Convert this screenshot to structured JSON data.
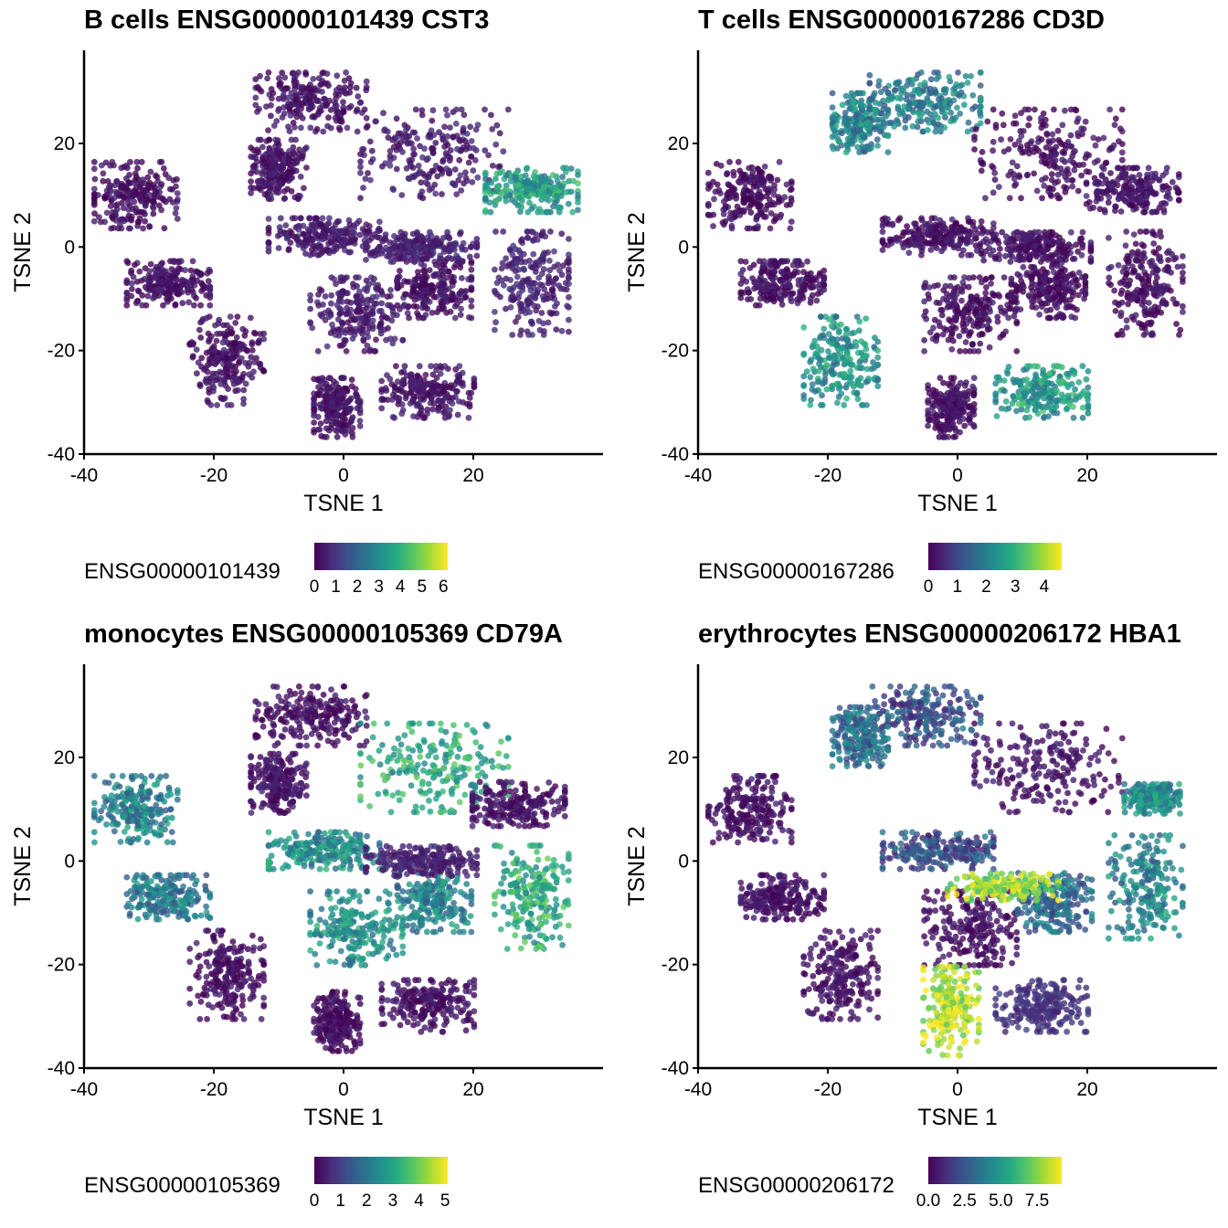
{
  "palette": [
    "#440154",
    "#472c7a",
    "#3b518b",
    "#2c718e",
    "#21908d",
    "#27ad81",
    "#5cc863",
    "#aadc32",
    "#fde725"
  ],
  "chart_data": [
    {
      "type": "scatter",
      "title": "B cells ENSG00000101439 CST3",
      "xlabel": "TSNE 1",
      "ylabel": "TSNE 2",
      "xlim": [
        -40,
        40
      ],
      "ylim": [
        -40,
        38
      ],
      "xticks": [
        -40,
        -20,
        0,
        20
      ],
      "yticks": [
        -40,
        -20,
        0,
        20
      ],
      "color_legend": {
        "title": "ENSG00000101439",
        "min": 0,
        "max": 6.2,
        "ticks": [
          "0",
          "1",
          "2",
          "3",
          "4",
          "5",
          "6"
        ],
        "tick_values": [
          0,
          1,
          2,
          3,
          4,
          5,
          6
        ]
      },
      "clusters": [
        {
          "name": "c1",
          "x": -32,
          "y": 10,
          "sx": 4.5,
          "sy": 4.5,
          "level": 0.05
        },
        {
          "name": "c2",
          "x": -27,
          "y": -7,
          "sx": 4.5,
          "sy": 3,
          "level": 0.05
        },
        {
          "name": "c3",
          "x": -18,
          "y": -22,
          "sx": 4,
          "sy": 6,
          "level": 0.05
        },
        {
          "name": "c4",
          "x": -5,
          "y": 28,
          "sx": 6,
          "sy": 4,
          "level": 0.05
        },
        {
          "name": "c5",
          "x": -10,
          "y": 15,
          "sx": 3,
          "sy": 4,
          "level": 0.05
        },
        {
          "name": "c6",
          "x": 14,
          "y": 18,
          "sx": 8,
          "sy": 6,
          "level": 0.08
        },
        {
          "name": "c7",
          "x": -3,
          "y": 2,
          "sx": 6,
          "sy": 2.5,
          "level": 0.07
        },
        {
          "name": "c8",
          "x": 2,
          "y": -13,
          "sx": 5,
          "sy": 5,
          "level": 0.08
        },
        {
          "name": "c9",
          "x": -1,
          "y": -31,
          "sx": 2.5,
          "sy": 4,
          "level": 0.05
        },
        {
          "name": "c10",
          "x": 13,
          "y": -28,
          "sx": 5,
          "sy": 3.5,
          "level": 0.06
        },
        {
          "name": "c11",
          "x": 14,
          "y": -8,
          "sx": 4,
          "sy": 4,
          "level": 0.05
        },
        {
          "name": "c12",
          "x": 29,
          "y": -7,
          "sx": 4,
          "sy": 7,
          "level": 0.1
        },
        {
          "name": "c13",
          "x": 29,
          "y": 11,
          "sx": 5,
          "sy": 3,
          "level": 0.55
        },
        {
          "name": "c14",
          "x": 12,
          "y": 0,
          "sx": 6,
          "sy": 2,
          "level": 0.1
        }
      ]
    },
    {
      "type": "scatter",
      "title": "T cells ENSG00000167286 CD3D",
      "xlabel": "TSNE 1",
      "ylabel": "TSNE 2",
      "xlim": [
        -40,
        40
      ],
      "ylim": [
        -40,
        38
      ],
      "xticks": [
        -40,
        -20,
        0,
        20
      ],
      "yticks": [
        -40,
        -20,
        0,
        20
      ],
      "color_legend": {
        "title": "ENSG00000167286",
        "min": 0,
        "max": 4.6,
        "ticks": [
          "0",
          "1",
          "2",
          "3",
          "4"
        ],
        "tick_values": [
          0,
          1,
          2,
          3,
          4
        ]
      },
      "clusters": [
        {
          "name": "c1",
          "x": -32,
          "y": 10,
          "sx": 4.5,
          "sy": 4.5,
          "level": 0.04
        },
        {
          "name": "c2",
          "x": -27,
          "y": -7,
          "sx": 4.5,
          "sy": 3,
          "level": 0.04
        },
        {
          "name": "c3",
          "x": -18,
          "y": -22,
          "sx": 4,
          "sy": 6,
          "level": 0.5
        },
        {
          "name": "c4",
          "x": -5,
          "y": 28,
          "sx": 6,
          "sy": 4,
          "level": 0.42
        },
        {
          "name": "c5",
          "x": -15,
          "y": 24,
          "sx": 3,
          "sy": 4,
          "level": 0.45
        },
        {
          "name": "c6",
          "x": 14,
          "y": 18,
          "sx": 8,
          "sy": 6,
          "level": 0.04
        },
        {
          "name": "c7",
          "x": -3,
          "y": 2,
          "sx": 6,
          "sy": 2.5,
          "level": 0.05
        },
        {
          "name": "c8",
          "x": 2,
          "y": -13,
          "sx": 5,
          "sy": 5,
          "level": 0.04
        },
        {
          "name": "c9",
          "x": -1,
          "y": -31,
          "sx": 2.5,
          "sy": 4,
          "level": 0.04
        },
        {
          "name": "c10",
          "x": 13,
          "y": -28,
          "sx": 5,
          "sy": 3.5,
          "level": 0.55
        },
        {
          "name": "c11",
          "x": 14,
          "y": -8,
          "sx": 4,
          "sy": 4,
          "level": 0.04
        },
        {
          "name": "c12",
          "x": 29,
          "y": -7,
          "sx": 4,
          "sy": 7,
          "level": 0.04
        },
        {
          "name": "c13",
          "x": 27,
          "y": 11,
          "sx": 5,
          "sy": 3,
          "level": 0.06
        },
        {
          "name": "c14",
          "x": 12,
          "y": 0,
          "sx": 6,
          "sy": 2,
          "level": 0.05
        }
      ]
    },
    {
      "type": "scatter",
      "title": "monocytes ENSG00000105369 CD79A",
      "xlabel": "TSNE 1",
      "ylabel": "TSNE 2",
      "xlim": [
        -40,
        40
      ],
      "ylim": [
        -40,
        38
      ],
      "xticks": [
        -40,
        -20,
        0,
        20
      ],
      "yticks": [
        -40,
        -20,
        0,
        20
      ],
      "color_legend": {
        "title": "ENSG00000105369",
        "min": 0,
        "max": 5.1,
        "ticks": [
          "0",
          "1",
          "2",
          "3",
          "4",
          "5"
        ],
        "tick_values": [
          0,
          1,
          2,
          3,
          4,
          5
        ]
      },
      "clusters": [
        {
          "name": "c1",
          "x": -32,
          "y": 10,
          "sx": 4.5,
          "sy": 4.5,
          "level": 0.45
        },
        {
          "name": "c2",
          "x": -27,
          "y": -7,
          "sx": 4.5,
          "sy": 3,
          "level": 0.4
        },
        {
          "name": "c3",
          "x": -18,
          "y": -22,
          "sx": 4,
          "sy": 6,
          "level": 0.04
        },
        {
          "name": "c4",
          "x": -5,
          "y": 28,
          "sx": 6,
          "sy": 4,
          "level": 0.04
        },
        {
          "name": "c5",
          "x": -10,
          "y": 15,
          "sx": 3,
          "sy": 4,
          "level": 0.06
        },
        {
          "name": "c6",
          "x": 14,
          "y": 18,
          "sx": 8,
          "sy": 6,
          "level": 0.6
        },
        {
          "name": "c7",
          "x": -3,
          "y": 2,
          "sx": 6,
          "sy": 2.5,
          "level": 0.5
        },
        {
          "name": "c8",
          "x": 2,
          "y": -13,
          "sx": 5,
          "sy": 5,
          "level": 0.5
        },
        {
          "name": "c9",
          "x": -1,
          "y": -31,
          "sx": 2.5,
          "sy": 4,
          "level": 0.04
        },
        {
          "name": "c10",
          "x": 13,
          "y": -28,
          "sx": 5,
          "sy": 3.5,
          "level": 0.05
        },
        {
          "name": "c11",
          "x": 14,
          "y": -8,
          "sx": 4,
          "sy": 4,
          "level": 0.45
        },
        {
          "name": "c12",
          "x": 29,
          "y": -7,
          "sx": 4,
          "sy": 7,
          "level": 0.62
        },
        {
          "name": "c13",
          "x": 27,
          "y": 11,
          "sx": 5,
          "sy": 3,
          "level": 0.05
        },
        {
          "name": "c14",
          "x": 12,
          "y": 0,
          "sx": 6,
          "sy": 2,
          "level": 0.1
        }
      ]
    },
    {
      "type": "scatter",
      "title": "erythrocytes ENSG00000206172 HBA1",
      "xlabel": "TSNE 1",
      "ylabel": "TSNE 2",
      "xlim": [
        -40,
        40
      ],
      "ylim": [
        -40,
        38
      ],
      "xticks": [
        -40,
        -20,
        0,
        20
      ],
      "yticks": [
        -40,
        -20,
        0,
        20
      ],
      "color_legend": {
        "title": "ENSG00000206172",
        "min": 0,
        "max": 9.2,
        "ticks": [
          "0.0",
          "2.5",
          "5.0",
          "7.5"
        ],
        "tick_values": [
          0,
          2.5,
          5,
          7.5
        ]
      },
      "clusters": [
        {
          "name": "c1",
          "x": -32,
          "y": 10,
          "sx": 4.5,
          "sy": 4.5,
          "level": 0.05
        },
        {
          "name": "c2",
          "x": -27,
          "y": -7,
          "sx": 4.5,
          "sy": 3,
          "level": 0.05
        },
        {
          "name": "c3",
          "x": -18,
          "y": -22,
          "sx": 4,
          "sy": 6,
          "level": 0.05
        },
        {
          "name": "c4",
          "x": -5,
          "y": 28,
          "sx": 6,
          "sy": 4,
          "level": 0.25
        },
        {
          "name": "c5",
          "x": -15,
          "y": 24,
          "sx": 3,
          "sy": 4,
          "level": 0.35
        },
        {
          "name": "c6",
          "x": 14,
          "y": 18,
          "sx": 8,
          "sy": 6,
          "level": 0.06
        },
        {
          "name": "c7",
          "x": -3,
          "y": 2,
          "sx": 6,
          "sy": 2.5,
          "level": 0.25
        },
        {
          "name": "c8",
          "x": 2,
          "y": -13,
          "sx": 5,
          "sy": 5,
          "level": 0.04
        },
        {
          "name": "c9",
          "x": -1,
          "y": -29,
          "sx": 3,
          "sy": 6,
          "level": 0.9
        },
        {
          "name": "c10",
          "x": 13,
          "y": -28,
          "sx": 5,
          "sy": 3.5,
          "level": 0.15
        },
        {
          "name": "c11",
          "x": 15,
          "y": -8,
          "sx": 4,
          "sy": 4,
          "level": 0.35
        },
        {
          "name": "c12",
          "x": 29,
          "y": -5,
          "sx": 4,
          "sy": 7,
          "level": 0.45
        },
        {
          "name": "c13",
          "x": 30,
          "y": 12,
          "sx": 3,
          "sy": 2,
          "level": 0.5
        },
        {
          "name": "c14",
          "x": 7,
          "y": -5,
          "sx": 6,
          "sy": 1.8,
          "level": 0.85
        }
      ]
    }
  ]
}
